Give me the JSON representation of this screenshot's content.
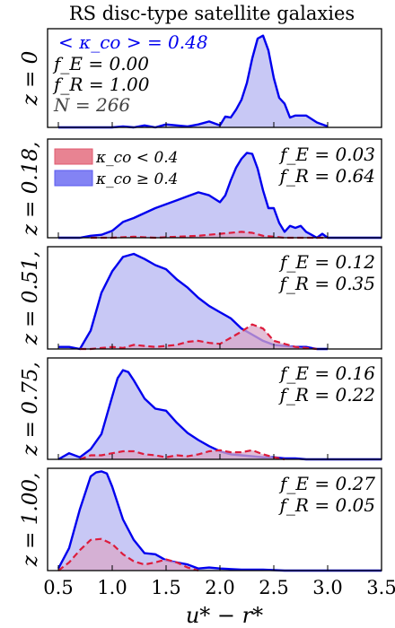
{
  "chart_data": {
    "type": "area",
    "title": "RS disc-type satellite galaxies",
    "xlabel": "u* − r*",
    "xlim": [
      0.4,
      3.5
    ],
    "xticks": [
      0.5,
      1.0,
      1.5,
      2.0,
      2.5,
      3.0,
      3.5
    ],
    "xtick_labels": [
      "0.5",
      "1.0",
      "1.5",
      "2.0",
      "2.5",
      "3.0",
      "3.5"
    ],
    "legend": {
      "placement": "top-left of panel 2",
      "entries": [
        {
          "label": "κ_co < 0.4",
          "color": "#e05a6e"
        },
        {
          "label": "κ_co ≥ 0.4",
          "color": "#5a5af0"
        }
      ]
    },
    "colors": {
      "kappa_high_line": "#0000ee",
      "kappa_high_fill": "#c8c8f5",
      "kappa_low_line": "#dd1c3c",
      "kappa_low_fill": "#d9a8c8"
    },
    "panels": [
      {
        "ylabel": "z = 0",
        "annotations": [
          "< κ_co > = 0.48",
          "f_E = 0.00",
          "f_R = 1.00",
          "N = 266"
        ],
        "ylim": [
          0,
          1.0
        ],
        "series": [
          {
            "name": "κ_co ≥ 0.4",
            "x": [
              0.5,
              1.0,
              1.1,
              1.2,
              1.3,
              1.4,
              1.5,
              1.6,
              1.7,
              1.8,
              1.9,
              2.0,
              2.05,
              2.1,
              2.15,
              2.2,
              2.25,
              2.3,
              2.35,
              2.4,
              2.45,
              2.5,
              2.55,
              2.6,
              2.65,
              2.7,
              2.8,
              2.9,
              3.0
            ],
            "y": [
              0.0,
              0.0,
              0.01,
              0.0,
              0.02,
              0.0,
              0.03,
              0.02,
              0.01,
              0.03,
              0.06,
              0.02,
              0.11,
              0.1,
              0.18,
              0.28,
              0.45,
              0.7,
              0.9,
              0.93,
              0.78,
              0.5,
              0.3,
              0.24,
              0.1,
              0.12,
              0.12,
              0.05,
              0.01
            ]
          }
        ]
      },
      {
        "ylabel": "z = 0.18,",
        "annotations": [
          "f_E = 0.03",
          "f_R = 0.64"
        ],
        "ylim": [
          0,
          1.0
        ],
        "series": [
          {
            "name": "κ_co ≥ 0.4",
            "x": [
              0.5,
              0.7,
              0.8,
              0.9,
              1.0,
              1.1,
              1.2,
              1.3,
              1.4,
              1.5,
              1.6,
              1.7,
              1.8,
              1.9,
              2.0,
              2.05,
              2.1,
              2.15,
              2.2,
              2.25,
              2.3,
              2.35,
              2.4,
              2.45,
              2.5,
              2.55,
              2.6,
              2.65,
              2.7,
              2.75,
              2.8,
              2.85,
              2.9,
              2.95,
              3.0,
              3.1,
              3.5
            ],
            "y": [
              0.0,
              0.0,
              0.02,
              0.03,
              0.07,
              0.16,
              0.2,
              0.25,
              0.3,
              0.34,
              0.38,
              0.42,
              0.46,
              0.43,
              0.36,
              0.43,
              0.58,
              0.71,
              0.8,
              0.86,
              0.85,
              0.7,
              0.48,
              0.3,
              0.3,
              0.15,
              0.06,
              0.12,
              0.1,
              0.12,
              0.06,
              0.03,
              0.0,
              0.04,
              0.0,
              0.0,
              0.0
            ]
          },
          {
            "name": "κ_co < 0.4",
            "x": [
              0.8,
              1.0,
              1.2,
              1.4,
              1.6,
              1.8,
              2.0,
              2.2,
              2.3,
              2.4,
              2.5,
              2.6,
              2.8,
              3.0
            ],
            "y": [
              0.0,
              0.0,
              0.01,
              0.0,
              0.01,
              0.02,
              0.04,
              0.06,
              0.05,
              0.02,
              0.01,
              0.0,
              0.0,
              0.0
            ]
          }
        ]
      },
      {
        "ylabel": "z = 0.51,",
        "annotations": [
          "f_E = 0.12",
          "f_R = 0.35"
        ],
        "ylim": [
          0,
          1.0
        ],
        "series": [
          {
            "name": "κ_co ≥ 0.4",
            "x": [
              0.5,
              0.6,
              0.7,
              0.8,
              0.9,
              1.0,
              1.1,
              1.2,
              1.3,
              1.4,
              1.5,
              1.6,
              1.7,
              1.8,
              1.9,
              2.0,
              2.1,
              2.2,
              2.3,
              2.4,
              2.5,
              2.6,
              2.7,
              2.8,
              2.9,
              3.0
            ],
            "y": [
              0.02,
              0.02,
              0.0,
              0.18,
              0.55,
              0.76,
              0.9,
              0.93,
              0.88,
              0.82,
              0.78,
              0.68,
              0.6,
              0.5,
              0.42,
              0.36,
              0.3,
              0.2,
              0.14,
              0.08,
              0.04,
              0.03,
              0.02,
              0.02,
              0.0,
              0.0
            ]
          },
          {
            "name": "κ_co < 0.4",
            "x": [
              0.7,
              0.8,
              0.9,
              1.0,
              1.1,
              1.2,
              1.3,
              1.4,
              1.5,
              1.6,
              1.7,
              1.8,
              1.9,
              2.0,
              2.1,
              2.2,
              2.3,
              2.4,
              2.5,
              2.6,
              2.7,
              2.8,
              2.9
            ],
            "y": [
              0.0,
              0.0,
              0.01,
              0.02,
              0.01,
              0.04,
              0.03,
              0.02,
              0.03,
              0.04,
              0.07,
              0.08,
              0.06,
              0.05,
              0.11,
              0.17,
              0.24,
              0.2,
              0.08,
              0.05,
              0.02,
              0.01,
              0.0
            ]
          }
        ]
      },
      {
        "ylabel": "z = 0.75,",
        "annotations": [
          "f_E = 0.16",
          "f_R = 0.22"
        ],
        "ylim": [
          0,
          1.0
        ],
        "series": [
          {
            "name": "κ_co ≥ 0.4",
            "x": [
              0.5,
              0.6,
              0.7,
              0.8,
              0.9,
              1.0,
              1.05,
              1.1,
              1.15,
              1.2,
              1.3,
              1.4,
              1.5,
              1.6,
              1.7,
              1.8,
              1.9,
              2.0,
              2.1,
              2.2,
              2.3,
              2.4,
              2.5,
              2.6,
              2.7,
              2.8,
              3.0,
              3.5
            ],
            "y": [
              0.0,
              0.06,
              0.02,
              0.1,
              0.25,
              0.62,
              0.8,
              0.88,
              0.86,
              0.78,
              0.6,
              0.5,
              0.48,
              0.36,
              0.26,
              0.19,
              0.13,
              0.08,
              0.05,
              0.04,
              0.03,
              0.02,
              0.02,
              0.01,
              0.01,
              0.0,
              0.0,
              0.0
            ]
          },
          {
            "name": "κ_co < 0.4",
            "x": [
              0.7,
              0.8,
              0.9,
              1.0,
              1.1,
              1.2,
              1.3,
              1.4,
              1.5,
              1.6,
              1.7,
              1.8,
              1.9,
              2.0,
              2.1,
              2.2,
              2.3,
              2.4,
              2.5,
              2.6
            ],
            "y": [
              0.0,
              0.04,
              0.04,
              0.06,
              0.08,
              0.08,
              0.05,
              0.04,
              0.02,
              0.04,
              0.03,
              0.05,
              0.08,
              0.09,
              0.07,
              0.07,
              0.09,
              0.05,
              0.02,
              0.0
            ]
          }
        ]
      },
      {
        "ylabel": "z = 1.00,",
        "annotations": [
          "f_E = 0.27",
          "f_R = 0.05"
        ],
        "ylim": [
          0,
          1.0
        ],
        "series": [
          {
            "name": "κ_co ≥ 0.4",
            "x": [
              0.5,
              0.6,
              0.7,
              0.8,
              0.85,
              0.9,
              0.95,
              1.0,
              1.1,
              1.2,
              1.3,
              1.4,
              1.5,
              1.6,
              1.7,
              1.8,
              1.9,
              2.0,
              2.2,
              2.4,
              2.6,
              2.8,
              3.0,
              3.5
            ],
            "y": [
              0.02,
              0.22,
              0.6,
              0.92,
              0.96,
              0.97,
              0.95,
              0.82,
              0.5,
              0.3,
              0.17,
              0.16,
              0.1,
              0.08,
              0.06,
              0.02,
              0.03,
              0.02,
              0.01,
              0.01,
              0.0,
              0.0,
              0.0,
              0.0
            ]
          },
          {
            "name": "κ_co < 0.4",
            "x": [
              0.5,
              0.6,
              0.7,
              0.8,
              0.9,
              1.0,
              1.1,
              1.2,
              1.3,
              1.4,
              1.5,
              1.6,
              1.7,
              1.8
            ],
            "y": [
              0.0,
              0.08,
              0.2,
              0.3,
              0.31,
              0.26,
              0.16,
              0.09,
              0.06,
              0.08,
              0.11,
              0.08,
              0.03,
              0.0
            ]
          }
        ]
      }
    ]
  }
}
